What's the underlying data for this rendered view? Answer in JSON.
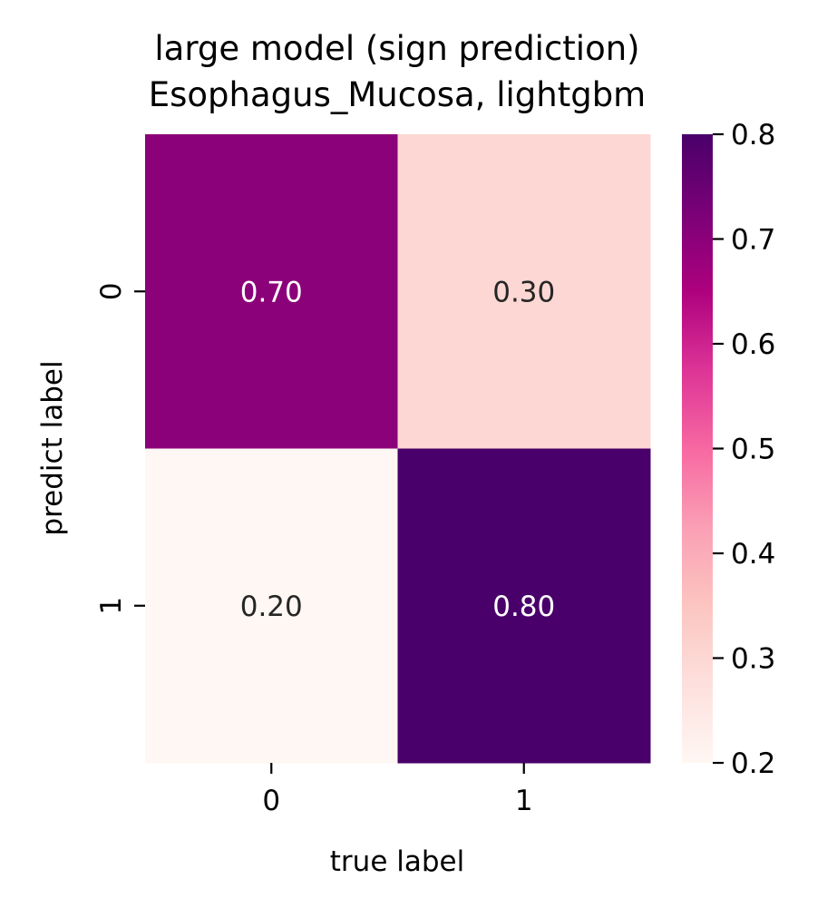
{
  "chart_data": {
    "type": "heatmap",
    "title": [
      "large model (sign prediction)",
      "Esophagus_Mucosa, lightgbm"
    ],
    "xlabel": "true label",
    "ylabel": "predict label",
    "x_categories": [
      "0",
      "1"
    ],
    "y_categories": [
      "0",
      "1"
    ],
    "values": [
      [
        0.7,
        0.3
      ],
      [
        0.2,
        0.8
      ]
    ],
    "value_labels": [
      [
        "0.70",
        "0.30"
      ],
      [
        "0.20",
        "0.80"
      ]
    ],
    "colormap": "RdPu",
    "colorbar": {
      "min": 0.2,
      "max": 0.8,
      "ticks": [
        0.8,
        0.7,
        0.6,
        0.5,
        0.4,
        0.3,
        0.2
      ],
      "tick_labels": [
        "0.8",
        "0.7",
        "0.6",
        "0.5",
        "0.4",
        "0.3",
        "0.2"
      ]
    },
    "colors": {
      "low": "#fff7f3",
      "mid_low": "#fcc5c0",
      "mid": "#f768a1",
      "mid_high": "#ae017e",
      "high": "#49006a",
      "dark_text": "#262626",
      "light_text": "#ffffff"
    }
  }
}
